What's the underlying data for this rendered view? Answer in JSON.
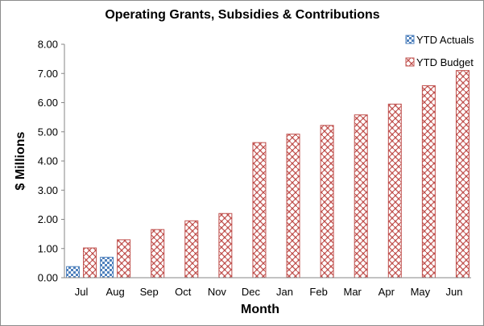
{
  "chart_data": {
    "type": "bar",
    "title": "Operating Grants, Subsidies & Contributions",
    "xlabel": "Month",
    "ylabel": "$ Millions",
    "ylim": [
      0,
      8
    ],
    "yticks": [
      "0.00",
      "1.00",
      "2.00",
      "3.00",
      "4.00",
      "5.00",
      "6.00",
      "7.00",
      "8.00"
    ],
    "grid": false,
    "legend_position": "top-right",
    "categories": [
      "Jul",
      "Aug",
      "Sep",
      "Oct",
      "Nov",
      "Dec",
      "Jan",
      "Feb",
      "Mar",
      "Apr",
      "May",
      "Jun"
    ],
    "series": [
      {
        "name": "YTD Actuals",
        "color": "#4f81bd",
        "pattern": "checkerboard",
        "values": [
          0.38,
          0.7,
          null,
          null,
          null,
          null,
          null,
          null,
          null,
          null,
          null,
          null
        ]
      },
      {
        "name": "YTD Budget",
        "color": "#c0504d",
        "pattern": "weave",
        "values": [
          1.02,
          1.3,
          1.65,
          1.95,
          2.2,
          4.63,
          4.92,
          5.22,
          5.58,
          5.95,
          6.58,
          7.1
        ]
      }
    ]
  }
}
